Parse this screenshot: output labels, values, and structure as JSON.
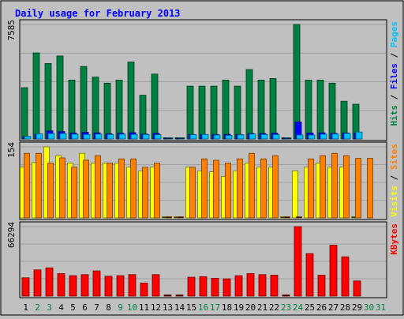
{
  "chart_data": {
    "type": "bar",
    "title": "Daily usage for February 2013",
    "categories": [
      "1",
      "2",
      "3",
      "4",
      "5",
      "6",
      "7",
      "8",
      "9",
      "10",
      "11",
      "12",
      "13",
      "14",
      "15",
      "16",
      "17",
      "18",
      "19",
      "20",
      "21",
      "22",
      "23",
      "24",
      "25",
      "26",
      "27",
      "28",
      "29",
      "30",
      "31"
    ],
    "weekend_days": [
      "2",
      "3",
      "9",
      "10",
      "16",
      "17",
      "23",
      "24",
      "30",
      "31"
    ],
    "panels": [
      {
        "id": "hits",
        "ymax": 7585,
        "ymax_label": "7585",
        "legend": [
          {
            "label": "Hits",
            "color": "#008040"
          },
          {
            "label": "Files",
            "color": "#0000ff"
          },
          {
            "label": "Pages",
            "color": "#00c0ff"
          }
        ],
        "series": [
          {
            "name": "Hits",
            "color": "#008040",
            "values": [
              3400,
              5700,
              5000,
              5500,
              3900,
              4800,
              4100,
              3700,
              3900,
              5100,
              2900,
              4300,
              0,
              0,
              3500,
              3500,
              3500,
              3900,
              3500,
              4600,
              3900,
              4000,
              0,
              7585,
              3900,
              3900,
              3700,
              2500,
              2300,
              null,
              null
            ]
          },
          {
            "name": "Files",
            "color": "#0000ff",
            "values": [
              170,
              300,
              540,
              490,
              400,
              440,
              410,
              350,
              380,
              420,
              330,
              370,
              0,
              0,
              300,
              300,
              300,
              310,
              300,
              360,
              360,
              380,
              0,
              1130,
              400,
              410,
              370,
              400,
              390,
              null,
              null
            ]
          },
          {
            "name": "Pages",
            "color": "#00c0ff",
            "values": [
              170,
              340,
              360,
              360,
              320,
              300,
              330,
              300,
              320,
              300,
              300,
              280,
              0,
              0,
              280,
              300,
              260,
              240,
              280,
              330,
              300,
              290,
              0,
              260,
              260,
              320,
              330,
              370,
              460,
              null,
              null
            ]
          }
        ]
      },
      {
        "id": "visits",
        "ymax": 154,
        "ymax_label": "154",
        "legend": [
          {
            "label": "Visits",
            "color": "#ffff00"
          },
          {
            "label": "Sites",
            "color": "#ff8000"
          }
        ],
        "series": [
          {
            "name": "Visits",
            "color": "#ffff00",
            "values": [
              110,
              120,
              154,
              135,
              119,
              140,
              119,
              119,
              119,
              110,
              102,
              110,
              0,
              0,
              110,
              102,
              100,
              90,
              102,
              119,
              110,
              110,
              0,
              102,
              110,
              119,
              110,
              110,
              0,
              null,
              null
            ]
          },
          {
            "name": "Sites",
            "color": "#ff8000",
            "values": [
              140,
              140,
              119,
              130,
              110,
              125,
              135,
              119,
              128,
              128,
              110,
              119,
              0,
              0,
              110,
              128,
              125,
              119,
              128,
              140,
              128,
              135,
              0,
              0,
              128,
              135,
              140,
              135,
              129,
              129,
              null
            ]
          }
        ]
      },
      {
        "id": "kbytes",
        "ymax": 66294,
        "ymax_label": "66294",
        "legend": [
          {
            "label": "KBytes",
            "color": "#ff0000"
          }
        ],
        "series": [
          {
            "name": "KBytes",
            "color": "#ff0000",
            "values": [
              17500,
              25000,
              27000,
              21500,
              19500,
              20500,
              24000,
              19000,
              19500,
              20500,
              12500,
              20500,
              0,
              0,
              18000,
              18500,
              17000,
              16500,
              19500,
              21500,
              20500,
              20000,
              0,
              66294,
              40500,
              20000,
              48500,
              37500,
              14500,
              null,
              null
            ]
          }
        ]
      }
    ]
  }
}
